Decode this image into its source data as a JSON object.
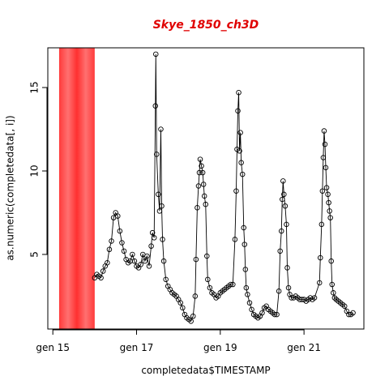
{
  "chart_data": {
    "type": "line",
    "title": "Skye_1850_ch3D",
    "xlabel": "completedata$TIMESTAMP",
    "ylabel": "as.numeric(completedata[, i])",
    "shaded_region": {
      "range": [
        15.15,
        16.0
      ],
      "color": "#ff3333"
    },
    "xlim": [
      14.88,
      22.43
    ],
    "xticks": [
      {
        "value": 15,
        "label": "gen 15"
      },
      {
        "value": 17,
        "label": "gen 17"
      },
      {
        "value": 19,
        "label": "gen 19"
      },
      {
        "value": 21,
        "label": "gen 21"
      }
    ],
    "ylim": [
      0.53,
      17.38
    ],
    "yticks": [
      5,
      10,
      15
    ],
    "series": [
      {
        "color": "#000000",
        "x": [
          16.0,
          16.05,
          16.1,
          16.15,
          16.2,
          16.25,
          16.3,
          16.35,
          16.4,
          16.45,
          16.5,
          16.55,
          16.6,
          16.65,
          16.7,
          16.75,
          16.8,
          16.85,
          16.9,
          16.95,
          17.0,
          17.05,
          17.1,
          17.15,
          17.2,
          17.25,
          17.3,
          17.35,
          17.38,
          17.42,
          17.45,
          17.46,
          17.48,
          17.52,
          17.55,
          17.58,
          17.6,
          17.62,
          17.65,
          17.7,
          17.75,
          17.8,
          17.85,
          17.9,
          17.95,
          18.0,
          18.05,
          18.1,
          18.15,
          18.2,
          18.25,
          18.3,
          18.35,
          18.4,
          18.42,
          18.45,
          18.48,
          18.5,
          18.52,
          18.55,
          18.58,
          18.6,
          18.62,
          18.65,
          18.68,
          18.7,
          18.75,
          18.8,
          18.85,
          18.9,
          18.95,
          19.0,
          19.05,
          19.1,
          19.15,
          19.2,
          19.25,
          19.3,
          19.35,
          19.38,
          19.4,
          19.42,
          19.44,
          19.46,
          19.48,
          19.5,
          19.53,
          19.56,
          19.58,
          19.6,
          19.62,
          19.65,
          19.7,
          19.75,
          19.8,
          19.85,
          19.9,
          19.95,
          20.0,
          20.05,
          20.1,
          20.15,
          20.2,
          20.25,
          20.3,
          20.35,
          20.4,
          20.43,
          20.46,
          20.48,
          20.5,
          20.52,
          20.55,
          20.58,
          20.6,
          20.63,
          20.66,
          20.7,
          20.75,
          20.8,
          20.85,
          20.9,
          20.95,
          21.0,
          21.05,
          21.1,
          21.15,
          21.2,
          21.25,
          21.37,
          21.39,
          21.42,
          21.44,
          21.46,
          21.48,
          21.5,
          21.52,
          21.54,
          21.57,
          21.59,
          21.61,
          21.63,
          21.65,
          21.67,
          21.7,
          21.73,
          21.77,
          21.82,
          21.87,
          21.92,
          21.97,
          22.02,
          22.07,
          22.12,
          22.17
        ],
        "values": [
          3.6,
          3.8,
          3.7,
          3.6,
          4.0,
          4.3,
          4.5,
          5.3,
          5.8,
          7.2,
          7.5,
          7.3,
          6.4,
          5.7,
          5.2,
          4.7,
          4.5,
          4.6,
          5.0,
          4.6,
          4.3,
          4.2,
          4.4,
          5.0,
          4.6,
          4.9,
          4.3,
          5.5,
          6.3,
          6.0,
          13.9,
          17.0,
          11.0,
          8.6,
          7.6,
          12.5,
          7.9,
          5.9,
          4.6,
          3.5,
          3.1,
          2.9,
          2.7,
          2.6,
          2.5,
          2.3,
          2.1,
          1.8,
          1.4,
          1.2,
          1.1,
          1.0,
          1.3,
          2.5,
          4.7,
          7.8,
          9.1,
          9.9,
          10.7,
          10.3,
          9.9,
          9.2,
          8.5,
          8.0,
          4.9,
          3.5,
          3.0,
          2.7,
          2.6,
          2.4,
          2.5,
          2.7,
          2.8,
          2.9,
          3.0,
          3.1,
          3.2,
          3.2,
          5.9,
          8.8,
          11.3,
          13.6,
          14.7,
          11.2,
          12.3,
          10.5,
          9.8,
          6.6,
          5.6,
          4.1,
          3.0,
          2.6,
          2.1,
          1.7,
          1.4,
          1.3,
          1.2,
          1.3,
          1.5,
          1.8,
          1.9,
          1.7,
          1.6,
          1.5,
          1.4,
          1.4,
          2.8,
          5.2,
          6.4,
          8.3,
          9.4,
          8.6,
          7.9,
          6.8,
          4.2,
          3.0,
          2.6,
          2.4,
          2.4,
          2.5,
          2.4,
          2.3,
          2.3,
          2.3,
          2.2,
          2.3,
          2.4,
          2.3,
          2.4,
          3.3,
          4.8,
          6.8,
          8.8,
          10.8,
          12.4,
          11.6,
          10.2,
          9.0,
          8.6,
          8.1,
          7.6,
          7.2,
          4.6,
          3.2,
          2.7,
          2.4,
          2.3,
          2.2,
          2.1,
          2.0,
          1.9,
          1.6,
          1.4,
          1.4,
          1.5
        ]
      }
    ]
  }
}
